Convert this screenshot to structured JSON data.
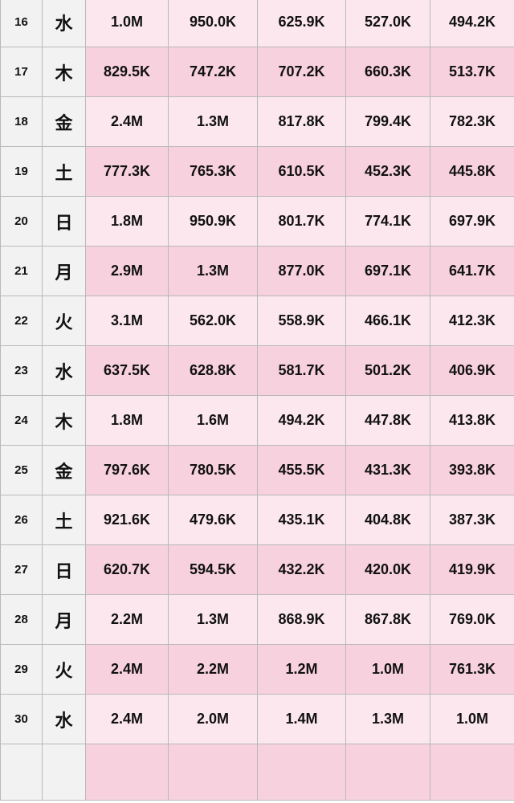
{
  "table": {
    "rows": [
      {
        "day": "16",
        "weekday": "水",
        "values": [
          "1.0M",
          "950.0K",
          "625.9K",
          "527.0K",
          "494.2K"
        ]
      },
      {
        "day": "17",
        "weekday": "木",
        "values": [
          "829.5K",
          "747.2K",
          "707.2K",
          "660.3K",
          "513.7K"
        ]
      },
      {
        "day": "18",
        "weekday": "金",
        "values": [
          "2.4M",
          "1.3M",
          "817.8K",
          "799.4K",
          "782.3K"
        ]
      },
      {
        "day": "19",
        "weekday": "土",
        "values": [
          "777.3K",
          "765.3K",
          "610.5K",
          "452.3K",
          "445.8K"
        ]
      },
      {
        "day": "20",
        "weekday": "日",
        "values": [
          "1.8M",
          "950.9K",
          "801.7K",
          "774.1K",
          "697.9K"
        ]
      },
      {
        "day": "21",
        "weekday": "月",
        "values": [
          "2.9M",
          "1.3M",
          "877.0K",
          "697.1K",
          "641.7K"
        ]
      },
      {
        "day": "22",
        "weekday": "火",
        "values": [
          "3.1M",
          "562.0K",
          "558.9K",
          "466.1K",
          "412.3K"
        ]
      },
      {
        "day": "23",
        "weekday": "水",
        "values": [
          "637.5K",
          "628.8K",
          "581.7K",
          "501.2K",
          "406.9K"
        ]
      },
      {
        "day": "24",
        "weekday": "木",
        "values": [
          "1.8M",
          "1.6M",
          "494.2K",
          "447.8K",
          "413.8K"
        ]
      },
      {
        "day": "25",
        "weekday": "金",
        "values": [
          "797.6K",
          "780.5K",
          "455.5K",
          "431.3K",
          "393.8K"
        ]
      },
      {
        "day": "26",
        "weekday": "土",
        "values": [
          "921.6K",
          "479.6K",
          "435.1K",
          "404.8K",
          "387.3K"
        ]
      },
      {
        "day": "27",
        "weekday": "日",
        "values": [
          "620.7K",
          "594.5K",
          "432.2K",
          "420.0K",
          "419.9K"
        ]
      },
      {
        "day": "28",
        "weekday": "月",
        "values": [
          "2.2M",
          "1.3M",
          "868.9K",
          "867.8K",
          "769.0K"
        ]
      },
      {
        "day": "29",
        "weekday": "火",
        "values": [
          "2.4M",
          "2.2M",
          "1.2M",
          "1.0M",
          "761.3K"
        ]
      },
      {
        "day": "30",
        "weekday": "水",
        "values": [
          "2.4M",
          "2.0M",
          "1.4M",
          "1.3M",
          "1.0M"
        ]
      }
    ]
  },
  "colors": {
    "label_bg": "#f2f2f2",
    "row_light": "#fce7ee",
    "row_dark": "#f7d1dd",
    "border": "#b9b9b9"
  }
}
